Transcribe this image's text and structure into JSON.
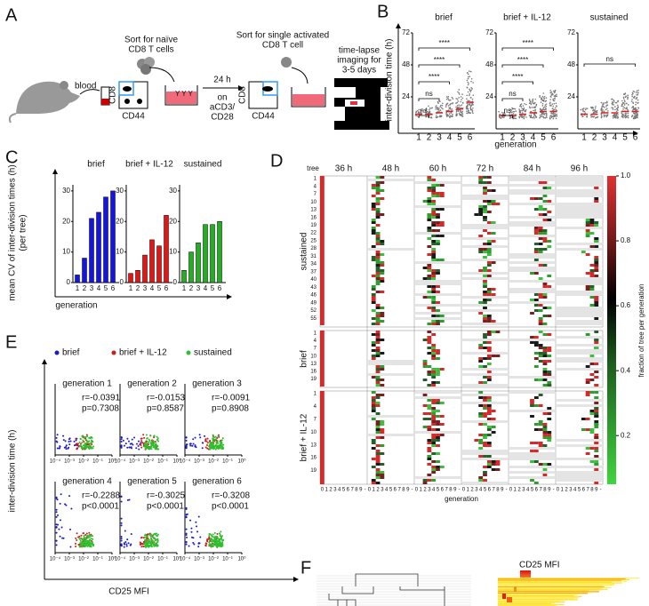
{
  "panel_a": {
    "label": "A",
    "blood": "blood",
    "sort1": [
      "Sort for naïve",
      "CD8 T cells"
    ],
    "cd8": "CD8",
    "cd44": "CD44",
    "culture": [
      "24 h",
      "on",
      "aCD3/",
      "CD28"
    ],
    "sort2": [
      "Sort for single activated",
      "CD8 T cell"
    ],
    "imaging": [
      "time-lapse",
      "imaging for",
      "3-5 days"
    ]
  },
  "panel_b": {
    "label": "B",
    "y_label": "inter-division time (h)",
    "x_label": "generation",
    "ylim": [
      0,
      72
    ],
    "yticks": [
      24,
      48,
      72
    ],
    "categories": [
      "1",
      "2",
      "3",
      "4",
      "5",
      "6"
    ],
    "plots": [
      {
        "title": "brief",
        "medians": [
          11,
          11,
          12,
          13,
          15,
          20
        ],
        "comparisons": [
          {
            "pair": [
              "1",
              "2"
            ],
            "label": "ns"
          },
          {
            "pair": [
              "1",
              "3"
            ],
            "label": "ns"
          },
          {
            "pair": [
              "1",
              "4"
            ],
            "label": "****"
          },
          {
            "pair": [
              "1",
              "5"
            ],
            "label": "****"
          },
          {
            "pair": [
              "1",
              "6"
            ],
            "label": "****"
          }
        ]
      },
      {
        "title": "brief + IL-12",
        "medians": [
          10,
          10,
          11,
          12,
          13,
          13
        ],
        "comparisons": [
          {
            "pair": [
              "1",
              "2"
            ],
            "label": "ns"
          },
          {
            "pair": [
              "1",
              "3"
            ],
            "label": "ns"
          },
          {
            "pair": [
              "1",
              "4"
            ],
            "label": "****"
          },
          {
            "pair": [
              "1",
              "5"
            ],
            "label": "****"
          },
          {
            "pair": [
              "1",
              "6"
            ],
            "label": "****"
          }
        ]
      },
      {
        "title": "sustained",
        "medians": [
          11,
          11,
          12,
          12,
          13,
          13
        ],
        "comparisons": [
          {
            "pair": [
              "1",
              "6"
            ],
            "label": "ns"
          }
        ]
      }
    ]
  },
  "panel_c": {
    "label": "C",
    "y_label": "mean CV of inter-division times (h)",
    "y_label2": "(per tree)",
    "x_label": "generation",
    "ylim": [
      0,
      32
    ],
    "yticks": [
      0,
      10,
      20,
      30
    ],
    "categories": [
      "1",
      "2",
      "3",
      "4",
      "5",
      "6"
    ],
    "series": [
      {
        "name": "brief",
        "color": "#1414e6",
        "values": [
          2.5,
          8,
          21,
          23,
          28,
          30
        ]
      },
      {
        "name": "brief + IL-12",
        "color": "#e61414",
        "values": [
          3,
          4,
          9,
          14,
          12,
          22
        ]
      },
      {
        "name": "sustained",
        "color": "#22b022",
        "values": [
          4,
          10,
          13,
          19,
          19,
          20
        ]
      }
    ]
  },
  "panel_d": {
    "label": "D",
    "tree_label": "tree",
    "times": [
      "36 h",
      "48 h",
      "60 h",
      "72 h",
      "84 h",
      "96 h"
    ],
    "groups": [
      {
        "name": "sustained",
        "trees": [
          "1",
          "4",
          "7",
          "10",
          "13",
          "16",
          "19",
          "22",
          "25",
          "28",
          "31",
          "34",
          "37",
          "40",
          "43",
          "46",
          "49",
          "52",
          "55"
        ]
      },
      {
        "name": "brief",
        "trees": [
          "1",
          "4",
          "7",
          "10",
          "13",
          "16",
          "19"
        ]
      },
      {
        "name": "brief + IL-12",
        "trees": [
          "1",
          "4",
          "7",
          "10",
          "13",
          "16",
          "19"
        ]
      }
    ],
    "generation_ticks": [
      "0",
      "1",
      "2",
      "3",
      "4",
      "5",
      "6",
      "7",
      "8",
      "9",
      "-"
    ],
    "x_label": "generation",
    "colorbar": {
      "label": "fraction of tree per generation",
      "lim": [
        0.05,
        1
      ],
      "ticks": [
        0.2,
        0.4,
        0.6,
        0.8,
        {
          "value": 1,
          "label": "1.0"
        }
      ]
    }
  },
  "panel_e": {
    "label": "E",
    "legend": [
      {
        "name": "brief",
        "color": "#1a1ad0"
      },
      {
        "name": "brief + IL-12",
        "color": "#d01a1a"
      },
      {
        "name": "sustained",
        "color": "#2ec02e"
      }
    ],
    "y_label": "inter-division time (h)",
    "x_label": "CD25 MFI",
    "xlim": [
      0.0001,
      1
    ],
    "log_x": true,
    "xticks": [
      {
        "value": 0.0001,
        "label": "10⁻⁴"
      },
      {
        "value": 0.001,
        "label": "10⁻³"
      },
      {
        "value": 0.01,
        "label": "10⁻²"
      },
      {
        "value": 0.1,
        "label": "10⁻¹"
      },
      {
        "value": 1,
        "label": "10⁰"
      }
    ],
    "plots": [
      {
        "title": "generation 1",
        "r": "r=-0.0391",
        "p": "p=0.7308"
      },
      {
        "title": "generation 2",
        "r": "r=-0.0153",
        "p": "p=0.8587"
      },
      {
        "title": "generation 3",
        "r": "r=-0.0091",
        "p": "p=0.8908"
      },
      {
        "title": "generation 4",
        "r": "r=-0.2288",
        "p": "p<0.0001"
      },
      {
        "title": "generation 5",
        "r": "r=-0.3025",
        "p": "p<0.0001"
      },
      {
        "title": "generation 6",
        "r": "r=-0.3208",
        "p": "p<0.0001"
      }
    ]
  },
  "panel_f": {
    "label": "F",
    "legend_label": "CD25 MFI"
  }
}
